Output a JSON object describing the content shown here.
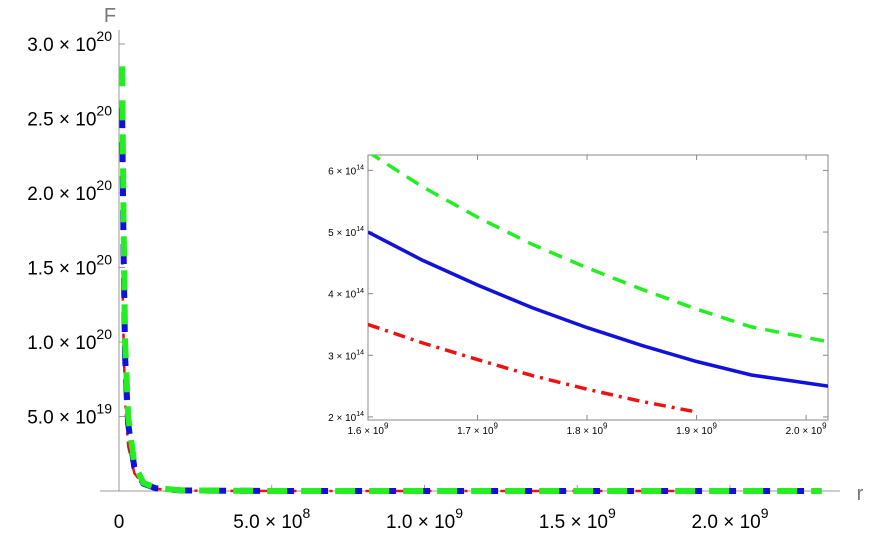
{
  "chart_data": [
    {
      "type": "line",
      "xlabel": "r",
      "ylabel": "F",
      "xlim": [
        0,
        2300000000.0
      ],
      "ylim": [
        0,
        3e+20
      ],
      "grid": false,
      "xticks": [
        {
          "value": 0,
          "label": "0"
        },
        {
          "value": 500000000.0,
          "label": "5.0 × 10",
          "exp": "8"
        },
        {
          "value": 1000000000.0,
          "label": "1.0 × 10",
          "exp": "9"
        },
        {
          "value": 1500000000.0,
          "label": "1.5 × 10",
          "exp": "9"
        },
        {
          "value": 2000000000.0,
          "label": "2.0 × 10",
          "exp": "9"
        }
      ],
      "yticks": [
        {
          "value": 5e+19,
          "label": "5.0 × 10",
          "exp": "19"
        },
        {
          "value": 1e+20,
          "label": "1.0 × 10",
          "exp": "20"
        },
        {
          "value": 1.5e+20,
          "label": "1.5 × 10",
          "exp": "20"
        },
        {
          "value": 2e+20,
          "label": "2.0 × 10",
          "exp": "20"
        },
        {
          "value": 2.5e+20,
          "label": "2.5 × 10",
          "exp": "20"
        },
        {
          "value": 3e+20,
          "label": "3.0 × 10",
          "exp": "20"
        }
      ],
      "series": [
        {
          "color": "#ee1111",
          "style": "dashdot",
          "x": [
            10000000.0,
            15000000.0,
            20000000.0,
            30000000.0,
            50000000.0,
            80000000.0,
            120000000.0,
            200000000.0,
            500000000.0,
            1000000000.0,
            1900000000.0
          ],
          "y": [
            1.6e+20,
            1e+20,
            6e+19,
            3e+19,
            1.2e+19,
            4e+18,
            1.5e+18,
            3e+17,
            1e+16,
            2000000000000000.0,
            210000000000000.0
          ]
        },
        {
          "color": "#1111dd",
          "style": "dashed",
          "x": [
            10000000.0,
            15000000.0,
            20000000.0,
            30000000.0,
            50000000.0,
            80000000.0,
            120000000.0,
            200000000.0,
            500000000.0,
            1000000000.0,
            2300000000.0
          ],
          "y": [
            2.57e+20,
            1.6e+20,
            9e+19,
            4.5e+19,
            1.6e+19,
            5e+18,
            1.8e+18,
            4e+17,
            1.5e+16,
            3000000000000000.0,
            190000000000000.0
          ]
        },
        {
          "color": "#22ee22",
          "style": "dashed",
          "x": [
            10000000.0,
            15000000.0,
            20000000.0,
            30000000.0,
            50000000.0,
            80000000.0,
            120000000.0,
            200000000.0,
            500000000.0,
            1000000000.0,
            2300000000.0
          ],
          "y": [
            2.85e+20,
            1.8e+20,
            1e+20,
            5e+19,
            1.8e+19,
            5.5e+18,
            2e+18,
            4.5e+17,
            1.7e+16,
            3500000000000000.0,
            240000000000000.0
          ]
        }
      ]
    },
    {
      "type": "line",
      "xlim": [
        1600000000.0,
        2020000000.0
      ],
      "ylim": [
        195000000000000.0,
        625000000000000.0
      ],
      "grid": false,
      "xticks": [
        {
          "value": 1600000000.0,
          "label": "1.6 × 10",
          "exp": "9"
        },
        {
          "value": 1700000000.0,
          "label": "1.7 × 10",
          "exp": "9"
        },
        {
          "value": 1800000000.0,
          "label": "1.8 × 10",
          "exp": "9"
        },
        {
          "value": 1900000000.0,
          "label": "1.9 × 10",
          "exp": "9"
        },
        {
          "value": 2000000000.0,
          "label": "2.0 × 10",
          "exp": "9"
        }
      ],
      "yticks": [
        {
          "value": 200000000000000.0,
          "label": "2 × 10",
          "exp": "14"
        },
        {
          "value": 300000000000000.0,
          "label": "3 × 10",
          "exp": "14"
        },
        {
          "value": 400000000000000.0,
          "label": "4 × 10",
          "exp": "14"
        },
        {
          "value": 500000000000000.0,
          "label": "5 × 10",
          "exp": "14"
        },
        {
          "value": 600000000000000.0,
          "label": "6 × 10",
          "exp": "14"
        }
      ],
      "series": [
        {
          "color": "#22ee22",
          "style": "dashed",
          "x": [
            1600000000.0,
            1650000000.0,
            1700000000.0,
            1750000000.0,
            1800000000.0,
            1850000000.0,
            1900000000.0,
            1950000000.0,
            2020000000.0
          ],
          "y": [
            630000000000000.0,
            573000000000000.0,
            524000000000000.0,
            480000000000000.0,
            442000000000000.0,
            407000000000000.0,
            375000000000000.0,
            346000000000000.0,
            322000000000000.0
          ]
        },
        {
          "color": "#1111dd",
          "style": "solid",
          "x": [
            1600000000.0,
            1650000000.0,
            1700000000.0,
            1750000000.0,
            1800000000.0,
            1850000000.0,
            1900000000.0,
            1950000000.0,
            2020000000.0
          ],
          "y": [
            500000000000000.0,
            454000000000000.0,
            414000000000000.0,
            377000000000000.0,
            345000000000000.0,
            316000000000000.0,
            290000000000000.0,
            268000000000000.0,
            250000000000000.0
          ]
        },
        {
          "color": "#ee1111",
          "style": "dashdot",
          "x": [
            1600000000.0,
            1650000000.0,
            1700000000.0,
            1750000000.0,
            1800000000.0,
            1850000000.0,
            1900000000.0
          ],
          "y": [
            350000000000000.0,
            320000000000000.0,
            293000000000000.0,
            267000000000000.0,
            245000000000000.0,
            225000000000000.0,
            208000000000000.0
          ]
        }
      ]
    }
  ]
}
